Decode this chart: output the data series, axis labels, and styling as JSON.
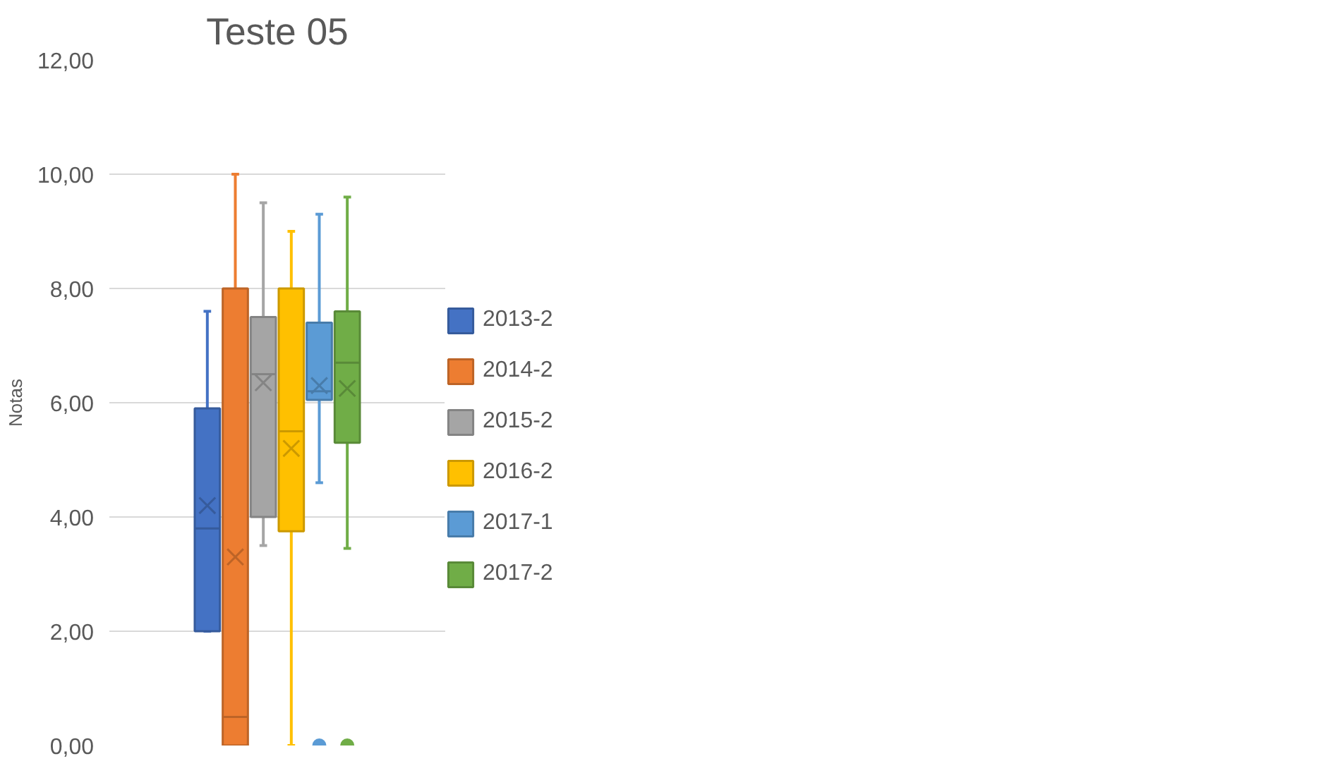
{
  "chart_data": {
    "type": "box",
    "title": "Teste 05",
    "ylabel": "Notas",
    "categories": [
      null
    ],
    "ylim": [
      0,
      12
    ],
    "yticks": [
      {
        "value": 0,
        "label": "0,00"
      },
      {
        "value": 2,
        "label": "2,00"
      },
      {
        "value": 4,
        "label": "4,00"
      },
      {
        "value": 6,
        "label": "6,00"
      },
      {
        "value": 8,
        "label": "8,00"
      },
      {
        "value": 10,
        "label": "10,00"
      },
      {
        "value": 12,
        "label": "12,00"
      }
    ],
    "grid": "y",
    "legend": "right",
    "series": [
      {
        "name": "2013-2",
        "color": "#4472c4",
        "boxes": [
          {
            "low": 2.0,
            "q1": 2.0,
            "median": 3.8,
            "q3": 5.9,
            "high": 7.6,
            "mean": 4.2
          }
        ]
      },
      {
        "name": "2014-2",
        "color": "#ed7d31",
        "boxes": [
          {
            "low": 0,
            "q1": 0,
            "median": 0.5,
            "q3": 8.0,
            "high": 10.0,
            "mean": 3.3
          }
        ]
      },
      {
        "name": "2015-2",
        "color": "#a5a5a5",
        "boxes": [
          {
            "low": 3.5,
            "q1": 4.0,
            "median": 6.5,
            "q3": 7.5,
            "high": 9.5,
            "mean": 6.35
          }
        ]
      },
      {
        "name": "2016-2",
        "color": "#ffc000",
        "boxes": [
          {
            "low": 0,
            "q1": 3.75,
            "median": 5.5,
            "q3": 8.0,
            "high": 9.0,
            "mean": 5.2
          }
        ]
      },
      {
        "name": "2017-1",
        "color": "#5b9bd5",
        "boxes": [
          {
            "low": 4.6,
            "q1": 6.05,
            "median": 6.2,
            "q3": 7.4,
            "high": 9.3,
            "mean": 6.3,
            "outliers": [
              0
            ]
          }
        ]
      },
      {
        "name": "2017-2",
        "color": "#70ad47",
        "boxes": [
          {
            "low": 3.45,
            "q1": 5.3,
            "median": 6.7,
            "q3": 7.6,
            "high": 9.6,
            "mean": 6.25,
            "outliers": [
              0
            ]
          }
        ]
      }
    ]
  }
}
